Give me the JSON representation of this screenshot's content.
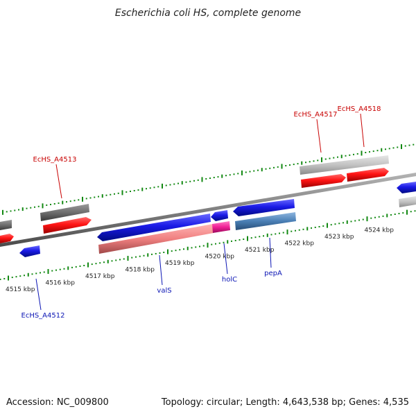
{
  "title": "Escherichia coli HS, complete genome",
  "footer": {
    "accession": "Accession: NC_009800",
    "summary": "Topology: circular; Length: 4,643,538 bp; Genes: 4,535"
  },
  "colors": {
    "backbone": "#808080",
    "tick": "#118811",
    "forward_gene": "#ff1414",
    "forward_gene_light": "#bdbdbd",
    "forward_gene_dark": "#6e6e6e",
    "reverse_gene": "#1a1ae6",
    "reverse_gene_light": "#f08080",
    "reverse_gene_steel": "#4a7fb5",
    "reverse_gene_magenta": "#f01e96",
    "label_forward": "#c80000",
    "label_reverse": "#0a14b4"
  },
  "tick_labels": [
    {
      "kbp": 4515,
      "text": "4515 kbp"
    },
    {
      "kbp": 4516,
      "text": "4516 kbp"
    },
    {
      "kbp": 4517,
      "text": "4517 kbp"
    },
    {
      "kbp": 4518,
      "text": "4518 kbp"
    },
    {
      "kbp": 4519,
      "text": "4519 kbp"
    },
    {
      "kbp": 4520,
      "text": "4520 kbp"
    },
    {
      "kbp": 4521,
      "text": "4521 kbp"
    },
    {
      "kbp": 4522,
      "text": "4522 kbp"
    },
    {
      "kbp": 4523,
      "text": "4523 kbp"
    },
    {
      "kbp": 4524,
      "text": "4524 kbp"
    }
  ],
  "gene_labels_top": [
    {
      "text": "EcHS_A4513",
      "kbp": 4516.5
    },
    {
      "text": "EcHS_A4517",
      "kbp": 4522.7
    },
    {
      "text": "EcHS_A4518",
      "kbp": 4523.7
    }
  ],
  "gene_labels_bottom": [
    {
      "text": "EcHS_A4512",
      "kbp": 4515.5
    },
    {
      "text": "valS",
      "kbp": 4519.1
    },
    {
      "text": "holC",
      "kbp": 4520.5
    },
    {
      "text": "pepA",
      "kbp": 4521.6
    }
  ]
}
